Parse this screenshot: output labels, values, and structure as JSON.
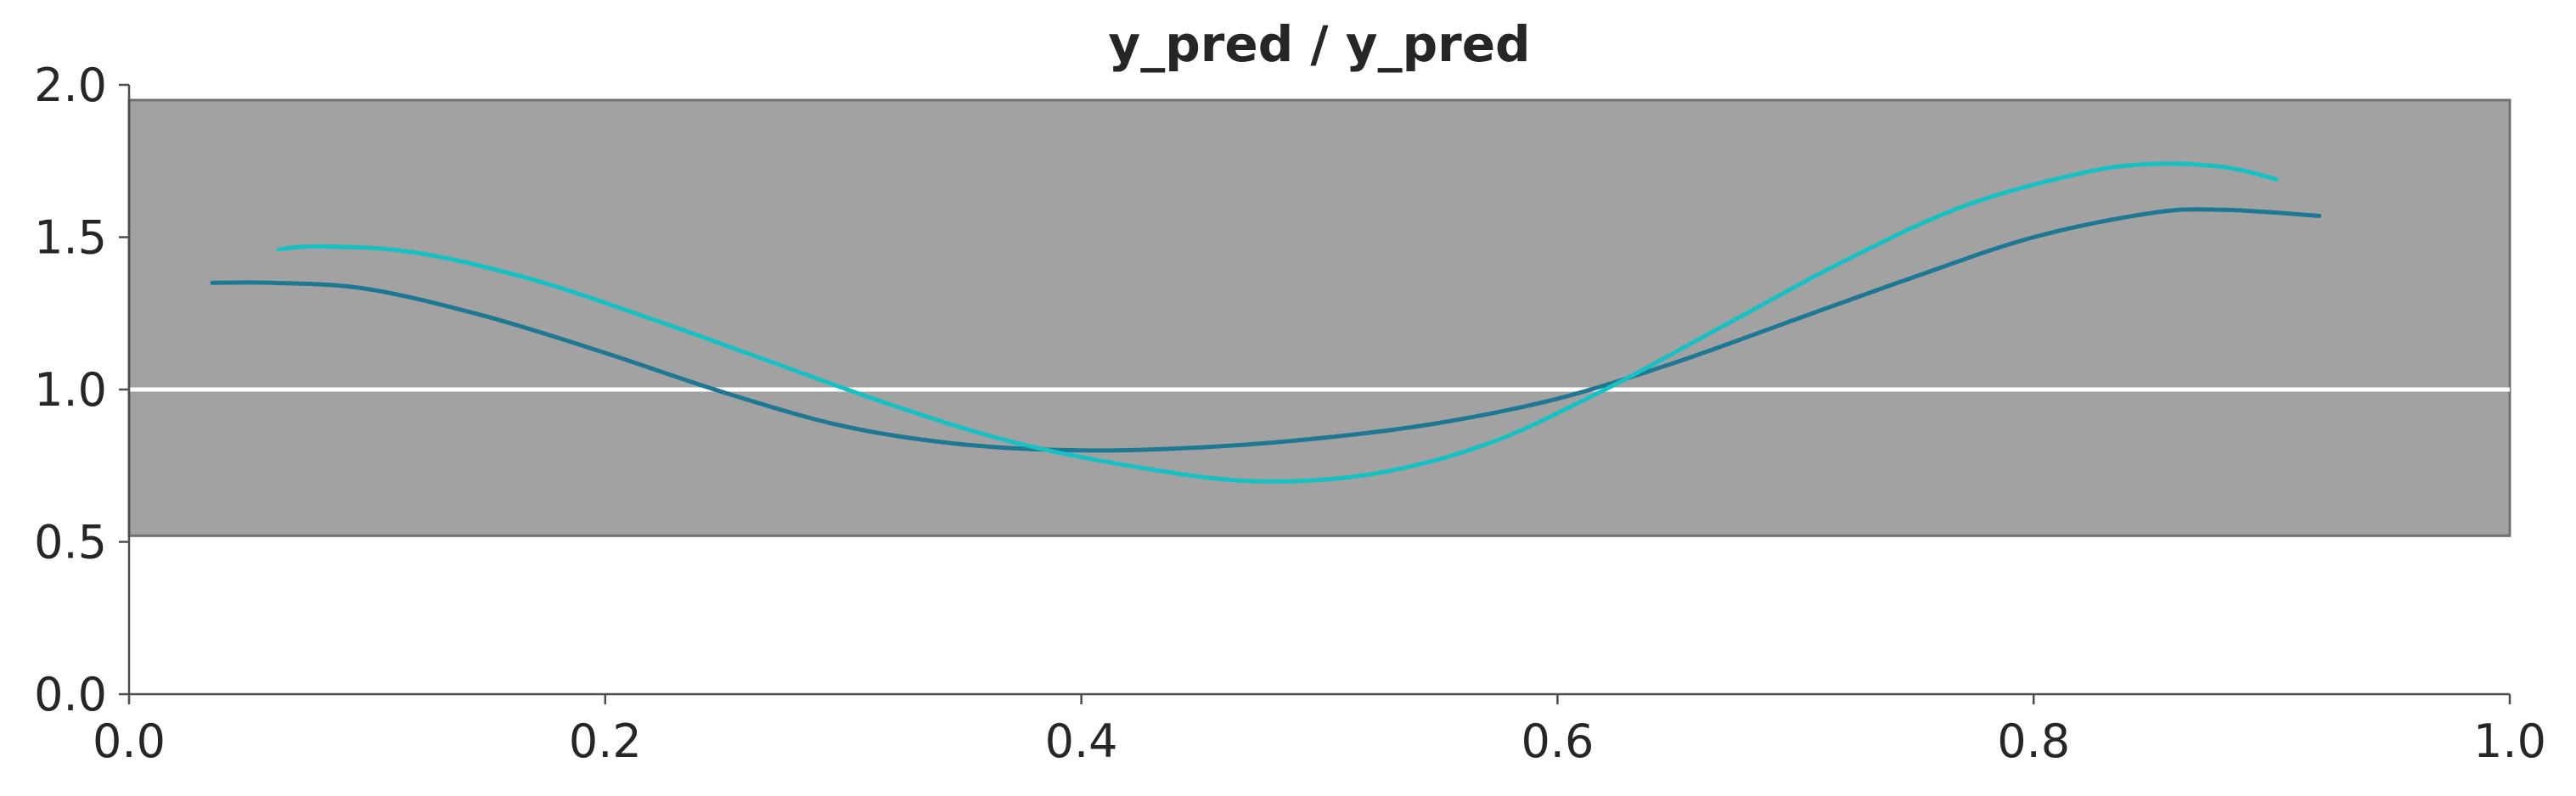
{
  "chart_data": {
    "type": "line",
    "title": "y_pred / y_pred",
    "xlabel": "",
    "ylabel": "",
    "xlim": [
      0.0,
      1.0
    ],
    "ylim": [
      0.0,
      2.0
    ],
    "xticks": [
      "0.0",
      "0.2",
      "0.4",
      "0.6",
      "0.8",
      "1.0"
    ],
    "yticks": [
      "0.0",
      "0.5",
      "1.0",
      "1.5",
      "2.0"
    ],
    "grid": false,
    "reference_line": {
      "y": 1.0,
      "color": "#ffffff"
    },
    "band": {
      "y0": 0.52,
      "y1": 1.95,
      "color": "#a2a2a2",
      "edge_color": "#707070"
    },
    "series": [
      {
        "color": "#1f7893",
        "x": [
          0.035,
          0.06,
          0.1,
          0.15,
          0.2,
          0.25,
          0.3,
          0.35,
          0.4,
          0.45,
          0.5,
          0.55,
          0.6,
          0.65,
          0.7,
          0.75,
          0.8,
          0.85,
          0.88,
          0.92
        ],
        "y": [
          1.35,
          1.35,
          1.33,
          1.24,
          1.12,
          0.99,
          0.88,
          0.82,
          0.8,
          0.81,
          0.84,
          0.89,
          0.97,
          1.09,
          1.23,
          1.37,
          1.5,
          1.58,
          1.59,
          1.57
        ]
      },
      {
        "color": "#17c0c3",
        "x": [
          0.063,
          0.08,
          0.12,
          0.17,
          0.22,
          0.27,
          0.32,
          0.37,
          0.42,
          0.47,
          0.52,
          0.57,
          0.62,
          0.67,
          0.72,
          0.77,
          0.82,
          0.85,
          0.88,
          0.902
        ],
        "y": [
          1.46,
          1.47,
          1.45,
          1.36,
          1.23,
          1.09,
          0.95,
          0.83,
          0.75,
          0.7,
          0.72,
          0.82,
          1.0,
          1.21,
          1.42,
          1.6,
          1.71,
          1.74,
          1.73,
          1.69
        ]
      }
    ]
  }
}
